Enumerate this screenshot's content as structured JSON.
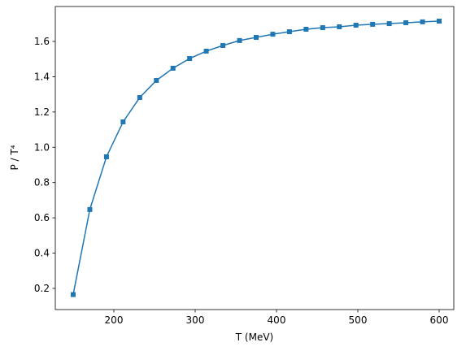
{
  "chart_data": {
    "type": "line",
    "x_label": "T (MeV)",
    "y_label": "P / T⁴",
    "x": [
      150,
      170.45,
      190.91,
      211.36,
      231.82,
      252.27,
      272.73,
      293.18,
      313.64,
      334.09,
      354.55,
      375,
      395.45,
      415.91,
      436.36,
      456.82,
      477.27,
      497.73,
      518.18,
      538.64,
      559.09,
      579.55,
      600
    ],
    "values": [
      0.165,
      0.647,
      0.946,
      1.144,
      1.282,
      1.379,
      1.448,
      1.503,
      1.545,
      1.577,
      1.605,
      1.623,
      1.641,
      1.655,
      1.669,
      1.678,
      1.683,
      1.692,
      1.697,
      1.701,
      1.706,
      1.711,
      1.715
    ],
    "color": "#1f77b4",
    "marker": "square",
    "xlim": [
      128,
      618
    ],
    "xticks": [
      200,
      300,
      400,
      500,
      600
    ],
    "ylim": [
      0.08,
      1.798
    ],
    "yticks": [
      0.2,
      0.4,
      0.6,
      0.8,
      {
        "value": 1,
        "label": "1.0"
      },
      1.2,
      1.4,
      1.6
    ],
    "grid": false
  }
}
